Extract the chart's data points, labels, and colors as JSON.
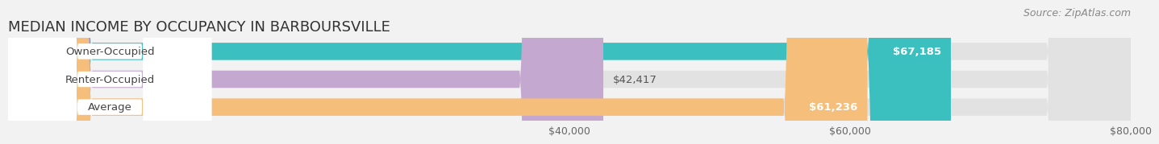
{
  "title": "MEDIAN INCOME BY OCCUPANCY IN BARBOURSVILLE",
  "source": "Source: ZipAtlas.com",
  "categories": [
    "Owner-Occupied",
    "Renter-Occupied",
    "Average"
  ],
  "values": [
    67185,
    42417,
    61236
  ],
  "bar_colors": [
    "#3bbfbf",
    "#c4a8d0",
    "#f5be7a"
  ],
  "bar_labels": [
    "$67,185",
    "$42,417",
    "$61,236"
  ],
  "xlim_max": 80000,
  "xticks": [
    40000,
    60000,
    80000
  ],
  "xtick_labels": [
    "$40,000",
    "$60,000",
    "$80,000"
  ],
  "background_color": "#f2f2f2",
  "bar_bg_color": "#e2e2e2",
  "bar_sep_color": "#ffffff",
  "title_fontsize": 13,
  "source_fontsize": 9,
  "label_fontsize": 9.5,
  "tick_fontsize": 9,
  "bar_height": 0.62,
  "cat_label_color": "#444444",
  "val_label_white": "#ffffff",
  "val_label_dark": "#555555",
  "grid_color": "#bbbbbb"
}
